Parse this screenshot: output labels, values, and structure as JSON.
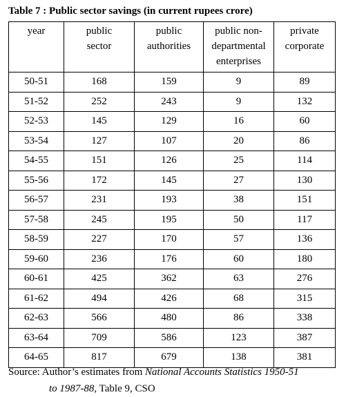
{
  "title": "Table 7 : Public sector savings (in current rupees crore)",
  "columns": [
    [
      "year"
    ],
    [
      "public",
      "sector"
    ],
    [
      "public",
      "authorities"
    ],
    [
      "public non-",
      "departmental",
      "enterprises"
    ],
    [
      "private",
      "corporate"
    ]
  ],
  "rows": [
    [
      "50-51",
      "168",
      "159",
      "9",
      "89"
    ],
    [
      "51-52",
      "252",
      "243",
      "9",
      "132"
    ],
    [
      "52-53",
      "145",
      "129",
      "16",
      "60"
    ],
    [
      "53-54",
      "127",
      "107",
      "20",
      "86"
    ],
    [
      "54-55",
      "151",
      "126",
      "25",
      "114"
    ],
    [
      "55-56",
      "172",
      "145",
      "27",
      "130"
    ],
    [
      "56-57",
      "231",
      "193",
      "38",
      "151"
    ],
    [
      "57-58",
      "245",
      "195",
      "50",
      "117"
    ],
    [
      "58-59",
      "227",
      "170",
      "57",
      "136"
    ],
    [
      "59-60",
      "236",
      "176",
      "60",
      "180"
    ],
    [
      "60-61",
      "425",
      "362",
      "63",
      "276"
    ],
    [
      "61-62",
      "494",
      "426",
      "68",
      "315"
    ],
    [
      "62-63",
      "566",
      "480",
      "86",
      "338"
    ],
    [
      "63-64",
      "709",
      "586",
      "123",
      "387"
    ],
    [
      "64-65",
      "817",
      "679",
      "138",
      "381"
    ]
  ],
  "source": {
    "prefix": "Source:  Author’s estimates from ",
    "italic1": "National Accounts Statistics  1950-51",
    "italic2": "to 1987-88,",
    "suffix": " Table 9, CSO"
  }
}
